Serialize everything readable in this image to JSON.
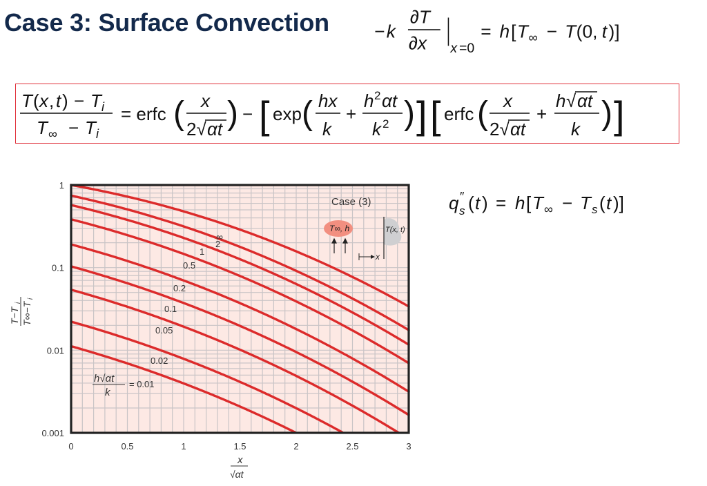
{
  "header": {
    "title": "Case 3: Surface Convection",
    "boundary_condition": "−k ∂T/∂x |x=0 = h[T∞ − T(0,t)]"
  },
  "solution_equation": {
    "lhs_num": "T(x,t) − Ti",
    "lhs_den": "T∞ − Ti",
    "rhs": "= erfc(x / 2√(αt)) − [exp(hx/k + h²αt/k²)][erfc(x / 2√(αt) + h√(αt)/k)]",
    "border_color": "#e0303a"
  },
  "heat_flux_equation": "q″s(t) = h[T∞ − Ts(t)]",
  "chart_data": {
    "type": "line",
    "title": "",
    "xlabel": "x / √(αt)",
    "ylabel": "(T − Ti) / (T∞ − Ti)",
    "xlim": [
      0,
      3
    ],
    "ylim": [
      0.001,
      1
    ],
    "yscale": "log",
    "x_ticks": [
      "0",
      "0.5",
      "1",
      "1.5",
      "2",
      "2.5",
      "3"
    ],
    "y_ticks": [
      "0.001",
      "0.01",
      "0.1",
      "1"
    ],
    "grid": true,
    "background_color": "#fde9e4",
    "line_color": "#dc2b2b",
    "parameter_label": "h√(αt)/k",
    "series": [
      {
        "name": "0.01",
        "beta": 0.01,
        "x": [
          0,
          0.5,
          1,
          1.5,
          2
        ],
        "values": [
          0.0112,
          0.0058,
          0.0026,
          0.001,
          0.0003
        ]
      },
      {
        "name": "0.02",
        "beta": 0.02,
        "x": [
          0,
          0.5,
          1,
          1.5,
          2,
          2.5
        ],
        "values": [
          0.0223,
          0.0117,
          0.0052,
          0.002,
          0.0006,
          0.0002
        ]
      },
      {
        "name": "0.05",
        "beta": 0.05,
        "x": [
          0,
          0.5,
          1,
          1.5,
          2,
          2.5,
          3
        ],
        "values": [
          0.054,
          0.0284,
          0.0128,
          0.0048,
          0.0015,
          0.0004,
          0.0001
        ]
      },
      {
        "name": "0.1",
        "beta": 0.1,
        "x": [
          0,
          0.5,
          1,
          1.5,
          2,
          2.5,
          3
        ],
        "values": [
          0.1035,
          0.0551,
          0.0248,
          0.0094,
          0.003,
          0.0008,
          0.0002
        ]
      },
      {
        "name": "0.2",
        "beta": 0.2,
        "x": [
          0,
          0.5,
          1,
          1.5,
          2,
          2.5,
          3
        ],
        "values": [
          0.1912,
          0.1037,
          0.0474,
          0.0181,
          0.0058,
          0.0015,
          0.0003
        ]
      },
      {
        "name": "0.5",
        "beta": 0.5,
        "x": [
          0,
          0.5,
          1,
          1.5,
          2,
          2.5,
          3
        ],
        "values": [
          0.3847,
          0.2215,
          0.1052,
          0.0415,
          0.0136,
          0.0037,
          0.0008
        ]
      },
      {
        "name": "1",
        "beta": 1,
        "x": [
          0,
          0.5,
          1,
          1.5,
          2,
          2.5,
          3
        ],
        "values": [
          0.5724,
          0.3514,
          0.1782,
          0.074,
          0.0251,
          0.0069,
          0.0015
        ]
      },
      {
        "name": "2",
        "beta": 2,
        "x": [
          0,
          0.5,
          1,
          1.5,
          2,
          2.5,
          3
        ],
        "values": [
          0.7449,
          0.495,
          0.2724,
          0.1213,
          0.0432,
          0.0122,
          0.0027
        ]
      },
      {
        "name": "∞",
        "beta": "inf",
        "x": [
          0,
          0.5,
          1,
          1.5,
          2,
          2.5,
          3
        ],
        "values": [
          1.0,
          0.7237,
          0.4795,
          0.2888,
          0.1573,
          0.0771,
          0.0339
        ]
      }
    ],
    "annotations": [
      "Case (3)",
      "T∞, h",
      "T(x, t)",
      "x"
    ]
  }
}
